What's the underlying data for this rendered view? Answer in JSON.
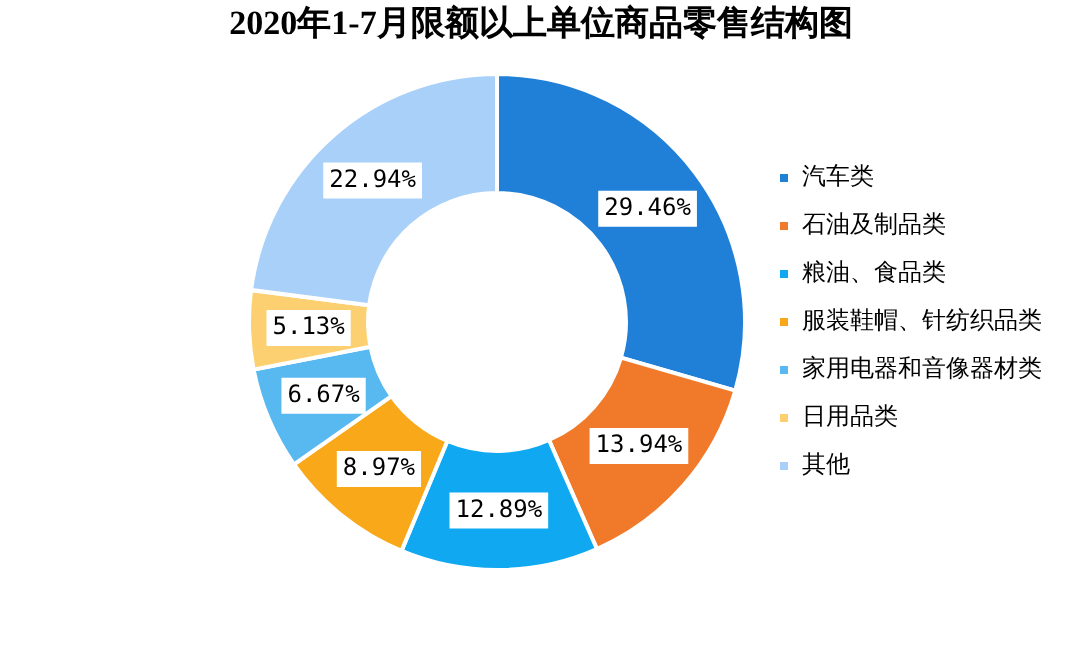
{
  "chart_data": {
    "type": "donut",
    "title": "2020年1-7月限额以上单位商品零售结构图",
    "categories": [
      "汽车类",
      "石油及制品类",
      "粮油、食品类",
      "服装鞋帽、针纺织品类",
      "家用电器和音像器材类",
      "日用品类",
      "其他"
    ],
    "values": [
      29.46,
      13.94,
      12.89,
      8.97,
      6.67,
      5.13,
      22.94
    ],
    "value_labels": [
      "29.46%",
      "13.94%",
      "12.89%",
      "8.97%",
      "6.67%",
      "5.13%",
      "22.94%"
    ],
    "colors": [
      "#2080d8",
      "#f07a2a",
      "#10a8f0",
      "#f8a818",
      "#58b8f0",
      "#fcd070",
      "#a8d0f8"
    ],
    "legend": "right"
  }
}
